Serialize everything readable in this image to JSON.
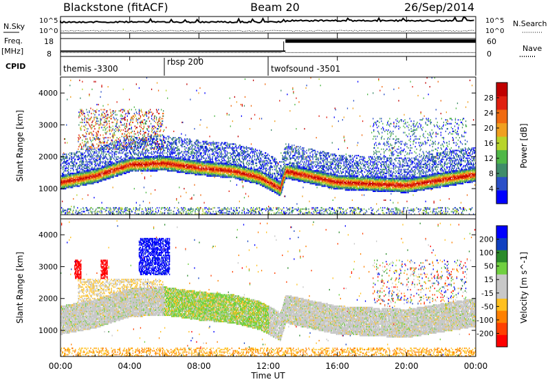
{
  "header": {
    "station": "Blackstone (fitACF)",
    "beam": "Beam 20",
    "date": "26/Sep/2014"
  },
  "noise_panel": {
    "left_label": "N.Sky",
    "right_label": "N.Search",
    "tick_high": "10^5",
    "tick_low": "10^0"
  },
  "freq_panel": {
    "left_label_line1": "Freq.",
    "left_label_line2": "[MHz]",
    "right_label": "Nave",
    "left_ticks": [
      "18",
      "8"
    ],
    "right_ticks": [
      "60",
      "0"
    ],
    "freq_value_mhz_before": 10.5,
    "nave_value_after": 52
  },
  "cpid_panel": {
    "label": "CPID",
    "segments": [
      {
        "name": "themis -3300",
        "start_hour": 0
      },
      {
        "name": "rbsp 200",
        "start_hour": 6
      },
      {
        "name": "twofsound -3501",
        "start_hour": 12
      }
    ]
  },
  "colors": {
    "power_scale": [
      "#0000ff",
      "#2a4fc8",
      "#3f8c6a",
      "#50b848",
      "#b8d42a",
      "#f0a020",
      "#f06a10",
      "#e02010",
      "#c00000"
    ],
    "velocity_scale": [
      "#0000ff",
      "#1040c0",
      "#2a8a2a",
      "#70d040",
      "#c8c8c8",
      "#c8c8c8",
      "#ffc020",
      "#ff8000",
      "#ff4000",
      "#ff0000"
    ]
  },
  "chart_data": [
    {
      "type": "heatmap",
      "title": "Power",
      "xlabel": "Time UT",
      "ylabel": "Slant Range [km]",
      "x_ticks": [
        "00:00",
        "04:00",
        "08:00",
        "12:00",
        "16:00",
        "20:00",
        "00:00"
      ],
      "y_ticks": [
        1000,
        2000,
        3000,
        4000
      ],
      "xlim_hours": [
        0,
        24
      ],
      "ylim_km": [
        180,
        4500
      ],
      "colorbar": {
        "label": "Power [dB]",
        "ticks": [
          "4",
          "8",
          "12",
          "16",
          "20",
          "24",
          "28"
        ],
        "range": [
          0,
          30
        ]
      },
      "main_echo_band_km": [
        {
          "hour": 0,
          "center": 1150
        },
        {
          "hour": 2,
          "center": 1350
        },
        {
          "hour": 4,
          "center": 1700
        },
        {
          "hour": 6,
          "center": 1750
        },
        {
          "hour": 8,
          "center": 1600
        },
        {
          "hour": 10,
          "center": 1500
        },
        {
          "hour": 11.5,
          "center": 1300
        },
        {
          "hour": 12.7,
          "center": 950
        },
        {
          "hour": 13,
          "center": 1500
        },
        {
          "hour": 16,
          "center": 1150
        },
        {
          "hour": 20,
          "center": 1050
        },
        {
          "hour": 24,
          "center": 1400
        }
      ]
    },
    {
      "type": "heatmap",
      "title": "Velocity",
      "xlabel": "Time UT",
      "ylabel": "Slant Range [km]",
      "x_ticks": [
        "00:00",
        "04:00",
        "08:00",
        "12:00",
        "16:00",
        "20:00",
        "00:00"
      ],
      "y_ticks": [
        1000,
        2000,
        3000,
        4000
      ],
      "xlim_hours": [
        0,
        24
      ],
      "ylim_km": [
        180,
        4500
      ],
      "colorbar": {
        "label": "Velocity [m s^-1]",
        "ticks": [
          "200",
          "100",
          "50",
          "15",
          "-15",
          "-50",
          "-100",
          "-200"
        ],
        "range": [
          -250,
          250
        ]
      }
    }
  ]
}
